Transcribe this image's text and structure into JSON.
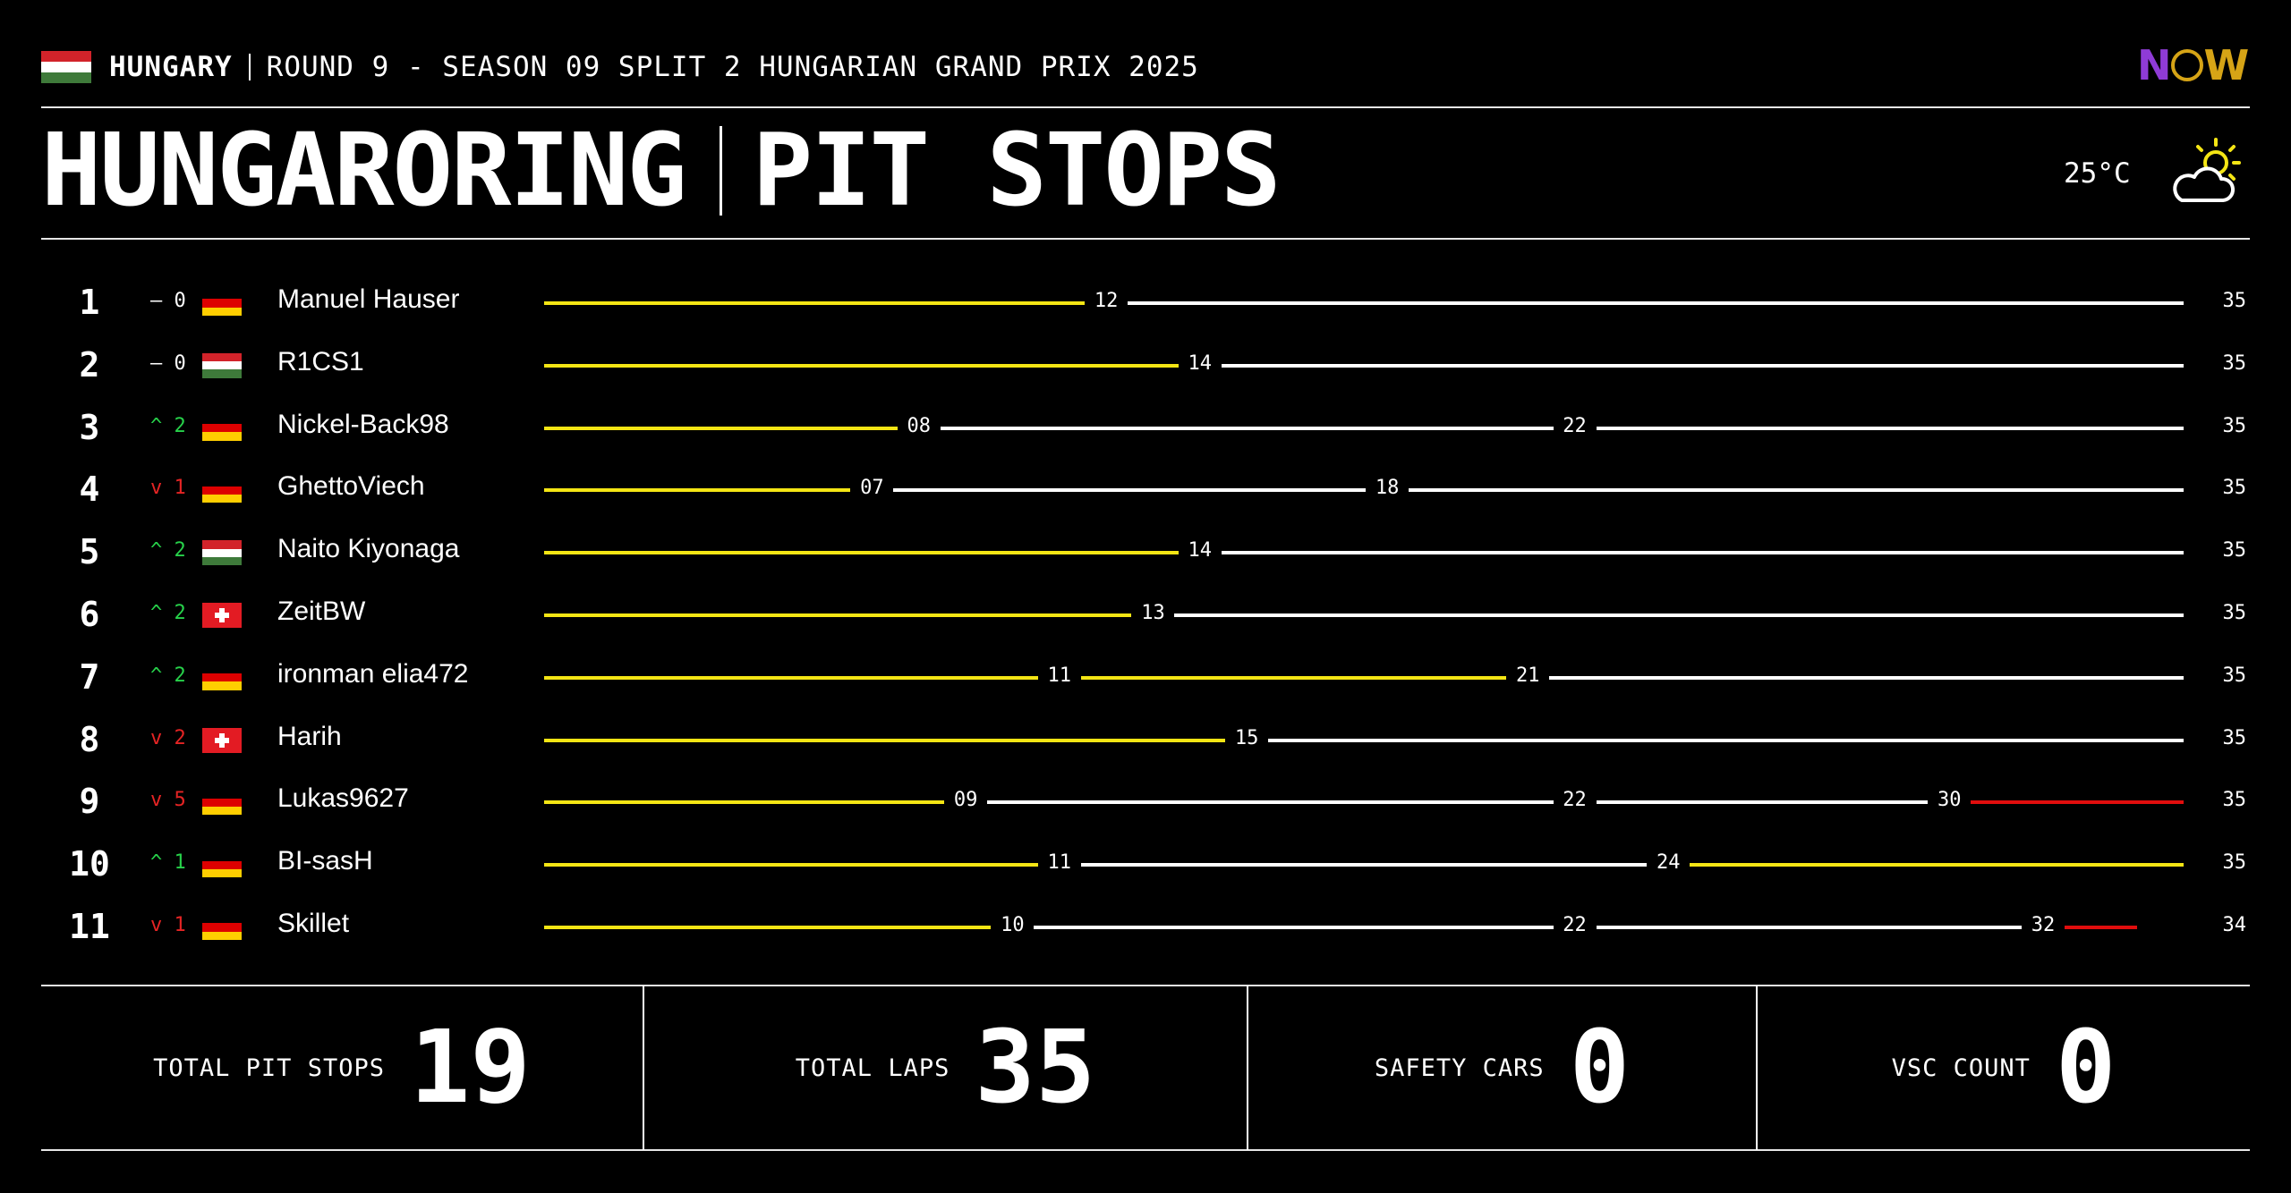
{
  "header": {
    "country": "HUNGARY",
    "round_text": "ROUND 9 - SEASON 09 SPLIT 2 HUNGARIAN GRAND PRIX 2025",
    "title_track": "HUNGARORING",
    "title_section": "PIT STOPS",
    "temperature": "25°C",
    "weather_icon": "sun-behind-cloud-icon",
    "logo_text": "NOW",
    "flag_colors": [
      "#d2232a",
      "#ffffff",
      "#3e7a3a"
    ]
  },
  "colors": {
    "yellow": "#f4e514",
    "white": "#ffffff",
    "red": "#e00d0d",
    "up": "#27d14a",
    "down": "#e52424"
  },
  "race": {
    "total_laps": 35,
    "rows": [
      {
        "pos": "1",
        "arrow": "–",
        "change": "0",
        "dir": "same",
        "flag": "de",
        "name": "Manuel Hauser",
        "stops": [
          "12"
        ],
        "segments": [
          "yellow",
          "white"
        ],
        "finish_lap": "35",
        "finish_value": 35
      },
      {
        "pos": "2",
        "arrow": "–",
        "change": "0",
        "dir": "same",
        "flag": "hu",
        "name": "R1CS1",
        "stops": [
          "14"
        ],
        "segments": [
          "yellow",
          "white"
        ],
        "finish_lap": "35",
        "finish_value": 35
      },
      {
        "pos": "3",
        "arrow": "^",
        "change": "2",
        "dir": "up",
        "flag": "de",
        "name": "Nickel-Back98",
        "stops": [
          "08",
          "22"
        ],
        "segments": [
          "yellow",
          "white",
          "white"
        ],
        "finish_lap": "35",
        "finish_value": 35
      },
      {
        "pos": "4",
        "arrow": "v",
        "change": "1",
        "dir": "down",
        "flag": "de",
        "name": "GhettoViech",
        "stops": [
          "07",
          "18"
        ],
        "segments": [
          "yellow",
          "white",
          "white"
        ],
        "finish_lap": "35",
        "finish_value": 35
      },
      {
        "pos": "5",
        "arrow": "^",
        "change": "2",
        "dir": "up",
        "flag": "hu",
        "name": "Naito Kiyonaga",
        "stops": [
          "14"
        ],
        "segments": [
          "yellow",
          "white"
        ],
        "finish_lap": "35",
        "finish_value": 35
      },
      {
        "pos": "6",
        "arrow": "^",
        "change": "2",
        "dir": "up",
        "flag": "ch",
        "name": "ZeitBW",
        "stops": [
          "13"
        ],
        "segments": [
          "yellow",
          "white"
        ],
        "finish_lap": "35",
        "finish_value": 35
      },
      {
        "pos": "7",
        "arrow": "^",
        "change": "2",
        "dir": "up",
        "flag": "de",
        "name": "ironman elia472",
        "stops": [
          "11",
          "21"
        ],
        "segments": [
          "yellow",
          "yellow",
          "white"
        ],
        "finish_lap": "35",
        "finish_value": 35
      },
      {
        "pos": "8",
        "arrow": "v",
        "change": "2",
        "dir": "down",
        "flag": "ch",
        "name": "Harih",
        "stops": [
          "15"
        ],
        "segments": [
          "yellow",
          "white"
        ],
        "finish_lap": "35",
        "finish_value": 35
      },
      {
        "pos": "9",
        "arrow": "v",
        "change": "5",
        "dir": "down",
        "flag": "de",
        "name": "Lukas9627",
        "stops": [
          "09",
          "22",
          "30"
        ],
        "segments": [
          "yellow",
          "white",
          "white",
          "red"
        ],
        "finish_lap": "35",
        "finish_value": 35
      },
      {
        "pos": "10",
        "arrow": "^",
        "change": "1",
        "dir": "up",
        "flag": "de",
        "name": "BI-sasH",
        "stops": [
          "11",
          "24"
        ],
        "segments": [
          "yellow",
          "white",
          "yellow"
        ],
        "finish_lap": "35",
        "finish_value": 35
      },
      {
        "pos": "11",
        "arrow": "v",
        "change": "1",
        "dir": "down",
        "flag": "de",
        "name": "Skillet",
        "stops": [
          "10",
          "22",
          "32"
        ],
        "segments": [
          "yellow",
          "white",
          "white",
          "red"
        ],
        "finish_lap": "34",
        "finish_value": 34
      }
    ]
  },
  "stats": [
    {
      "label": "TOTAL PIT STOPS",
      "value": "19"
    },
    {
      "label": "TOTAL LAPS",
      "value": "35"
    },
    {
      "label": "SAFETY CARS",
      "value": "0"
    },
    {
      "label": "VSC COUNT",
      "value": "0"
    }
  ]
}
